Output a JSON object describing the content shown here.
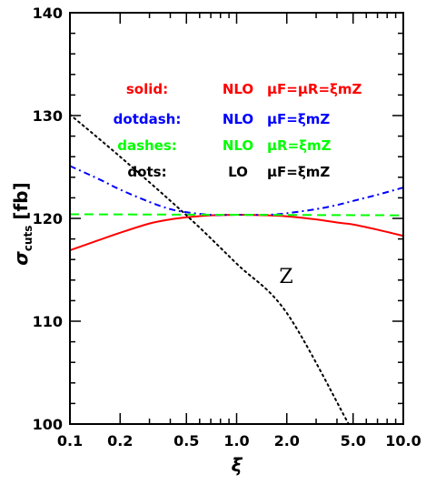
{
  "chart_data": {
    "type": "line",
    "xscale": "log",
    "xlim": [
      0.1,
      10.0
    ],
    "ylim": [
      100,
      140
    ],
    "grid": false,
    "xlabel": "ξ",
    "ylabel": "σ_cuts [fb]",
    "ylabel_parts": {
      "sigma": "σ",
      "sub": "cuts",
      "unit": "[fb]"
    },
    "x_ticks": [
      {
        "value": 0.1,
        "label": "0.1"
      },
      {
        "value": 0.2,
        "label": "0.2"
      },
      {
        "value": 0.5,
        "label": "0.5"
      },
      {
        "value": 1.0,
        "label": "1.0"
      },
      {
        "value": 2.0,
        "label": "2.0"
      },
      {
        "value": 5.0,
        "label": "5.0"
      },
      {
        "value": 10.0,
        "label": "10.0"
      }
    ],
    "y_ticks": [
      {
        "value": 100,
        "label": "100"
      },
      {
        "value": 110,
        "label": "110"
      },
      {
        "value": 120,
        "label": "120"
      },
      {
        "value": 130,
        "label": "130"
      },
      {
        "value": 140,
        "label": "140"
      }
    ],
    "annotation": "Z",
    "legend_position": "top-right",
    "series": [
      {
        "name": "solid: NLO μF=μR=ξmZ",
        "style": "solid",
        "color": "#ff0000",
        "legend": {
          "key": "solid:",
          "order": "NLO",
          "formula": "μF=μR=ξmZ"
        },
        "x": [
          0.1,
          0.15,
          0.2,
          0.3,
          0.4,
          0.5,
          0.7,
          1.0,
          1.5,
          2.0,
          3.0,
          4.0,
          5.0,
          7.0,
          10.0
        ],
        "values": [
          116.9,
          117.9,
          118.6,
          119.5,
          119.9,
          120.1,
          120.3,
          120.35,
          120.3,
          120.2,
          119.9,
          119.6,
          119.4,
          118.9,
          118.3
        ]
      },
      {
        "name": "dotdash: NLO μF=ξmZ",
        "style": "dotdash",
        "color": "#0000ff",
        "legend": {
          "key": "dotdash:",
          "order": "NLO",
          "formula": "μF=ξmZ"
        },
        "x": [
          0.1,
          0.15,
          0.2,
          0.3,
          0.4,
          0.5,
          0.7,
          1.0,
          1.5,
          2.0,
          3.0,
          4.0,
          5.0,
          7.0,
          10.0
        ],
        "values": [
          125.1,
          123.8,
          122.8,
          121.6,
          120.9,
          120.6,
          120.35,
          120.35,
          120.35,
          120.5,
          120.9,
          121.3,
          121.7,
          122.3,
          123.0
        ]
      },
      {
        "name": "dashes: NLO μR=ξmZ",
        "style": "dashes",
        "color": "#00ff00",
        "legend": {
          "key": "dashes:",
          "order": "NLO",
          "formula": "μR=ξmZ"
        },
        "x": [
          0.1,
          1.0,
          10.0
        ],
        "values": [
          120.4,
          120.35,
          120.3
        ]
      },
      {
        "name": "dots: LO μF=ξmZ",
        "style": "dots",
        "color": "#000000",
        "legend": {
          "key": "dots:",
          "order": "LO",
          "formula": "μF=ξmZ"
        },
        "x": [
          0.1,
          0.2,
          0.5,
          1.0,
          2.0,
          4.7
        ],
        "values": [
          130.1,
          126.0,
          120.3,
          115.6,
          110.8,
          100.0
        ]
      }
    ]
  }
}
